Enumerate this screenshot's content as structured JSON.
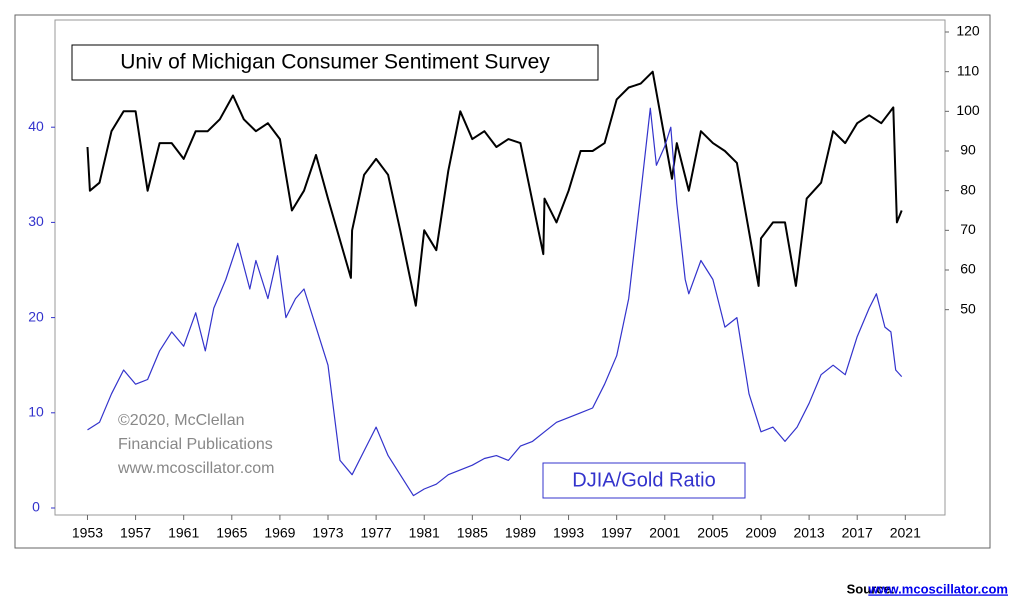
{
  "chart_data": {
    "type": "line",
    "title": "Univ of Michigan Consumer Sentiment Survey",
    "annotations": [
      "©2020, McClellan",
      "Financial Publications",
      "www.mcoscillator.com"
    ],
    "series_label": "DJIA/Gold Ratio",
    "source": {
      "label": "Source:",
      "link": "www.mcoscillator.com"
    },
    "xlim": [
      1950.3,
      2024.3
    ],
    "xticks": [
      1953,
      1957,
      1961,
      1965,
      1969,
      1973,
      1977,
      1981,
      1985,
      1989,
      1993,
      1997,
      2001,
      2005,
      2009,
      2013,
      2017,
      2021
    ],
    "ylim": [
      0,
      50
    ],
    "yticks": [
      0,
      10,
      20,
      30,
      40
    ],
    "y2lim": [
      0,
      120
    ],
    "y2ticks": [
      50,
      60,
      70,
      80,
      90,
      100,
      110,
      120
    ],
    "left_axis_color": "#3333cc",
    "grid": false,
    "series": [
      {
        "name": "Consumer Sentiment",
        "color": "#000000",
        "axis": "y2",
        "x": [
          1953.0,
          1953.2,
          1954,
          1955,
          1956,
          1957,
          1958,
          1959,
          1960,
          1961,
          1962,
          1963,
          1964,
          1965.1,
          1966,
          1967,
          1968,
          1969,
          1970,
          1971,
          1972,
          1973,
          1974.9,
          1975,
          1976,
          1977,
          1978,
          1979,
          1980.3,
          1981,
          1982,
          1983,
          1984,
          1985,
          1986,
          1987,
          1988,
          1989,
          1990.9,
          1991,
          1992,
          1993,
          1994,
          1995,
          1996,
          1997,
          1998,
          1999,
          2000,
          2001.6,
          2002,
          2003,
          2004,
          2005,
          2006,
          2007,
          2008.8,
          2009,
          2010,
          2011,
          2011.9,
          2012.8,
          2014,
          2015,
          2016,
          2017,
          2018,
          2019,
          2020.0,
          2020.3,
          2020.7
        ],
        "values": [
          91,
          80,
          82,
          95,
          100,
          100,
          80,
          92,
          92,
          88,
          95,
          95,
          98,
          104,
          98,
          95,
          97,
          93,
          75,
          80,
          89,
          78,
          58,
          70,
          84,
          88,
          84,
          70,
          51,
          70,
          65,
          85,
          100,
          93,
          95,
          91,
          93,
          92,
          64,
          78,
          72,
          80,
          90,
          90,
          92,
          103,
          106,
          107,
          110,
          83,
          92,
          80,
          95,
          92,
          90,
          87,
          56,
          68,
          72,
          72,
          56,
          78,
          82,
          95,
          92,
          97,
          99,
          97,
          101,
          72,
          75
        ]
      },
      {
        "name": "DJIA/Gold Ratio",
        "color": "#3333cc",
        "axis": "y",
        "x": [
          1953,
          1954,
          1955,
          1956,
          1957,
          1958,
          1959,
          1960,
          1961,
          1962,
          1962.8,
          1963.5,
          1964.5,
          1965.5,
          1966.5,
          1967,
          1968,
          1968.8,
          1969.5,
          1970.3,
          1971,
          1972,
          1973,
          1974,
          1975,
          1976,
          1977,
          1978,
          1979,
          1980.1,
          1981,
          1982,
          1983,
          1984,
          1985,
          1986,
          1987,
          1988,
          1989,
          1990,
          1991,
          1992,
          1993,
          1994,
          1995,
          1996,
          1997,
          1998,
          1999,
          1999.8,
          2000.3,
          2001,
          2001.5,
          2002,
          2002.7,
          2003,
          2004,
          2005,
          2006,
          2007,
          2008,
          2009,
          2010,
          2011,
          2012,
          2013,
          2014,
          2015,
          2016,
          2017,
          2018,
          2018.6,
          2019.3,
          2019.8,
          2020.2,
          2020.7
        ],
        "values": [
          8.2,
          9,
          12,
          14.5,
          13,
          13.5,
          16.5,
          18.5,
          17,
          20.5,
          16.5,
          21,
          24,
          27.8,
          23,
          26,
          22,
          26.5,
          20,
          22,
          23,
          19,
          15,
          5,
          3.5,
          6,
          8.5,
          5.5,
          3.5,
          1.3,
          2,
          2.5,
          3.5,
          4,
          4.5,
          5.2,
          5.5,
          5,
          6.5,
          7,
          8,
          9,
          9.5,
          10,
          10.5,
          13,
          16,
          22,
          33,
          42,
          36,
          38,
          40,
          32,
          24,
          22.5,
          26,
          24,
          19,
          20,
          12,
          8,
          8.5,
          7,
          8.5,
          11,
          14,
          15,
          14,
          18,
          21,
          22.5,
          19,
          18.5,
          14.5,
          13.8
        ]
      }
    ]
  }
}
